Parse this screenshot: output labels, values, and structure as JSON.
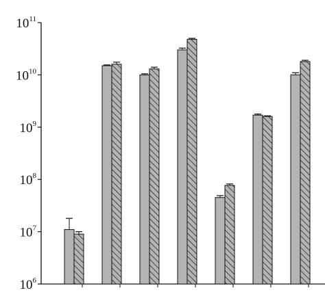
{
  "chart_data": {
    "type": "bar",
    "y_scale": "log",
    "ylim": [
      1000000,
      100000000000
    ],
    "y_ticks": [
      {
        "value": 1000000,
        "base": "10",
        "exp": "6"
      },
      {
        "value": 10000000,
        "base": "10",
        "exp": "7"
      },
      {
        "value": 100000000,
        "base": "10",
        "exp": "8"
      },
      {
        "value": 1000000000,
        "base": "10",
        "exp": "9"
      },
      {
        "value": 10000000000,
        "base": "10",
        "exp": "10"
      },
      {
        "value": 100000000000,
        "base": "10",
        "exp": "11"
      }
    ],
    "category_count": 7,
    "series": [
      {
        "style": "solid",
        "fill": "#b4b4b4",
        "values": [
          11000000,
          15000000000,
          10000000000,
          30000000000,
          45000000,
          1700000000,
          10000000000
        ],
        "errors": [
          7000000,
          500000000,
          500000000,
          2500000000,
          4000000,
          80000000,
          1000000000
        ]
      },
      {
        "style": "hatched",
        "fill": "#b4b4b4",
        "values": [
          9000000,
          16000000000,
          13000000000,
          48000000000,
          77000000,
          1600000000,
          18000000000
        ],
        "errors": [
          1000000,
          1500000000,
          1000000000,
          2000000000,
          5000000,
          50000000,
          1000000000
        ]
      }
    ],
    "grid": false,
    "legend": "none"
  }
}
